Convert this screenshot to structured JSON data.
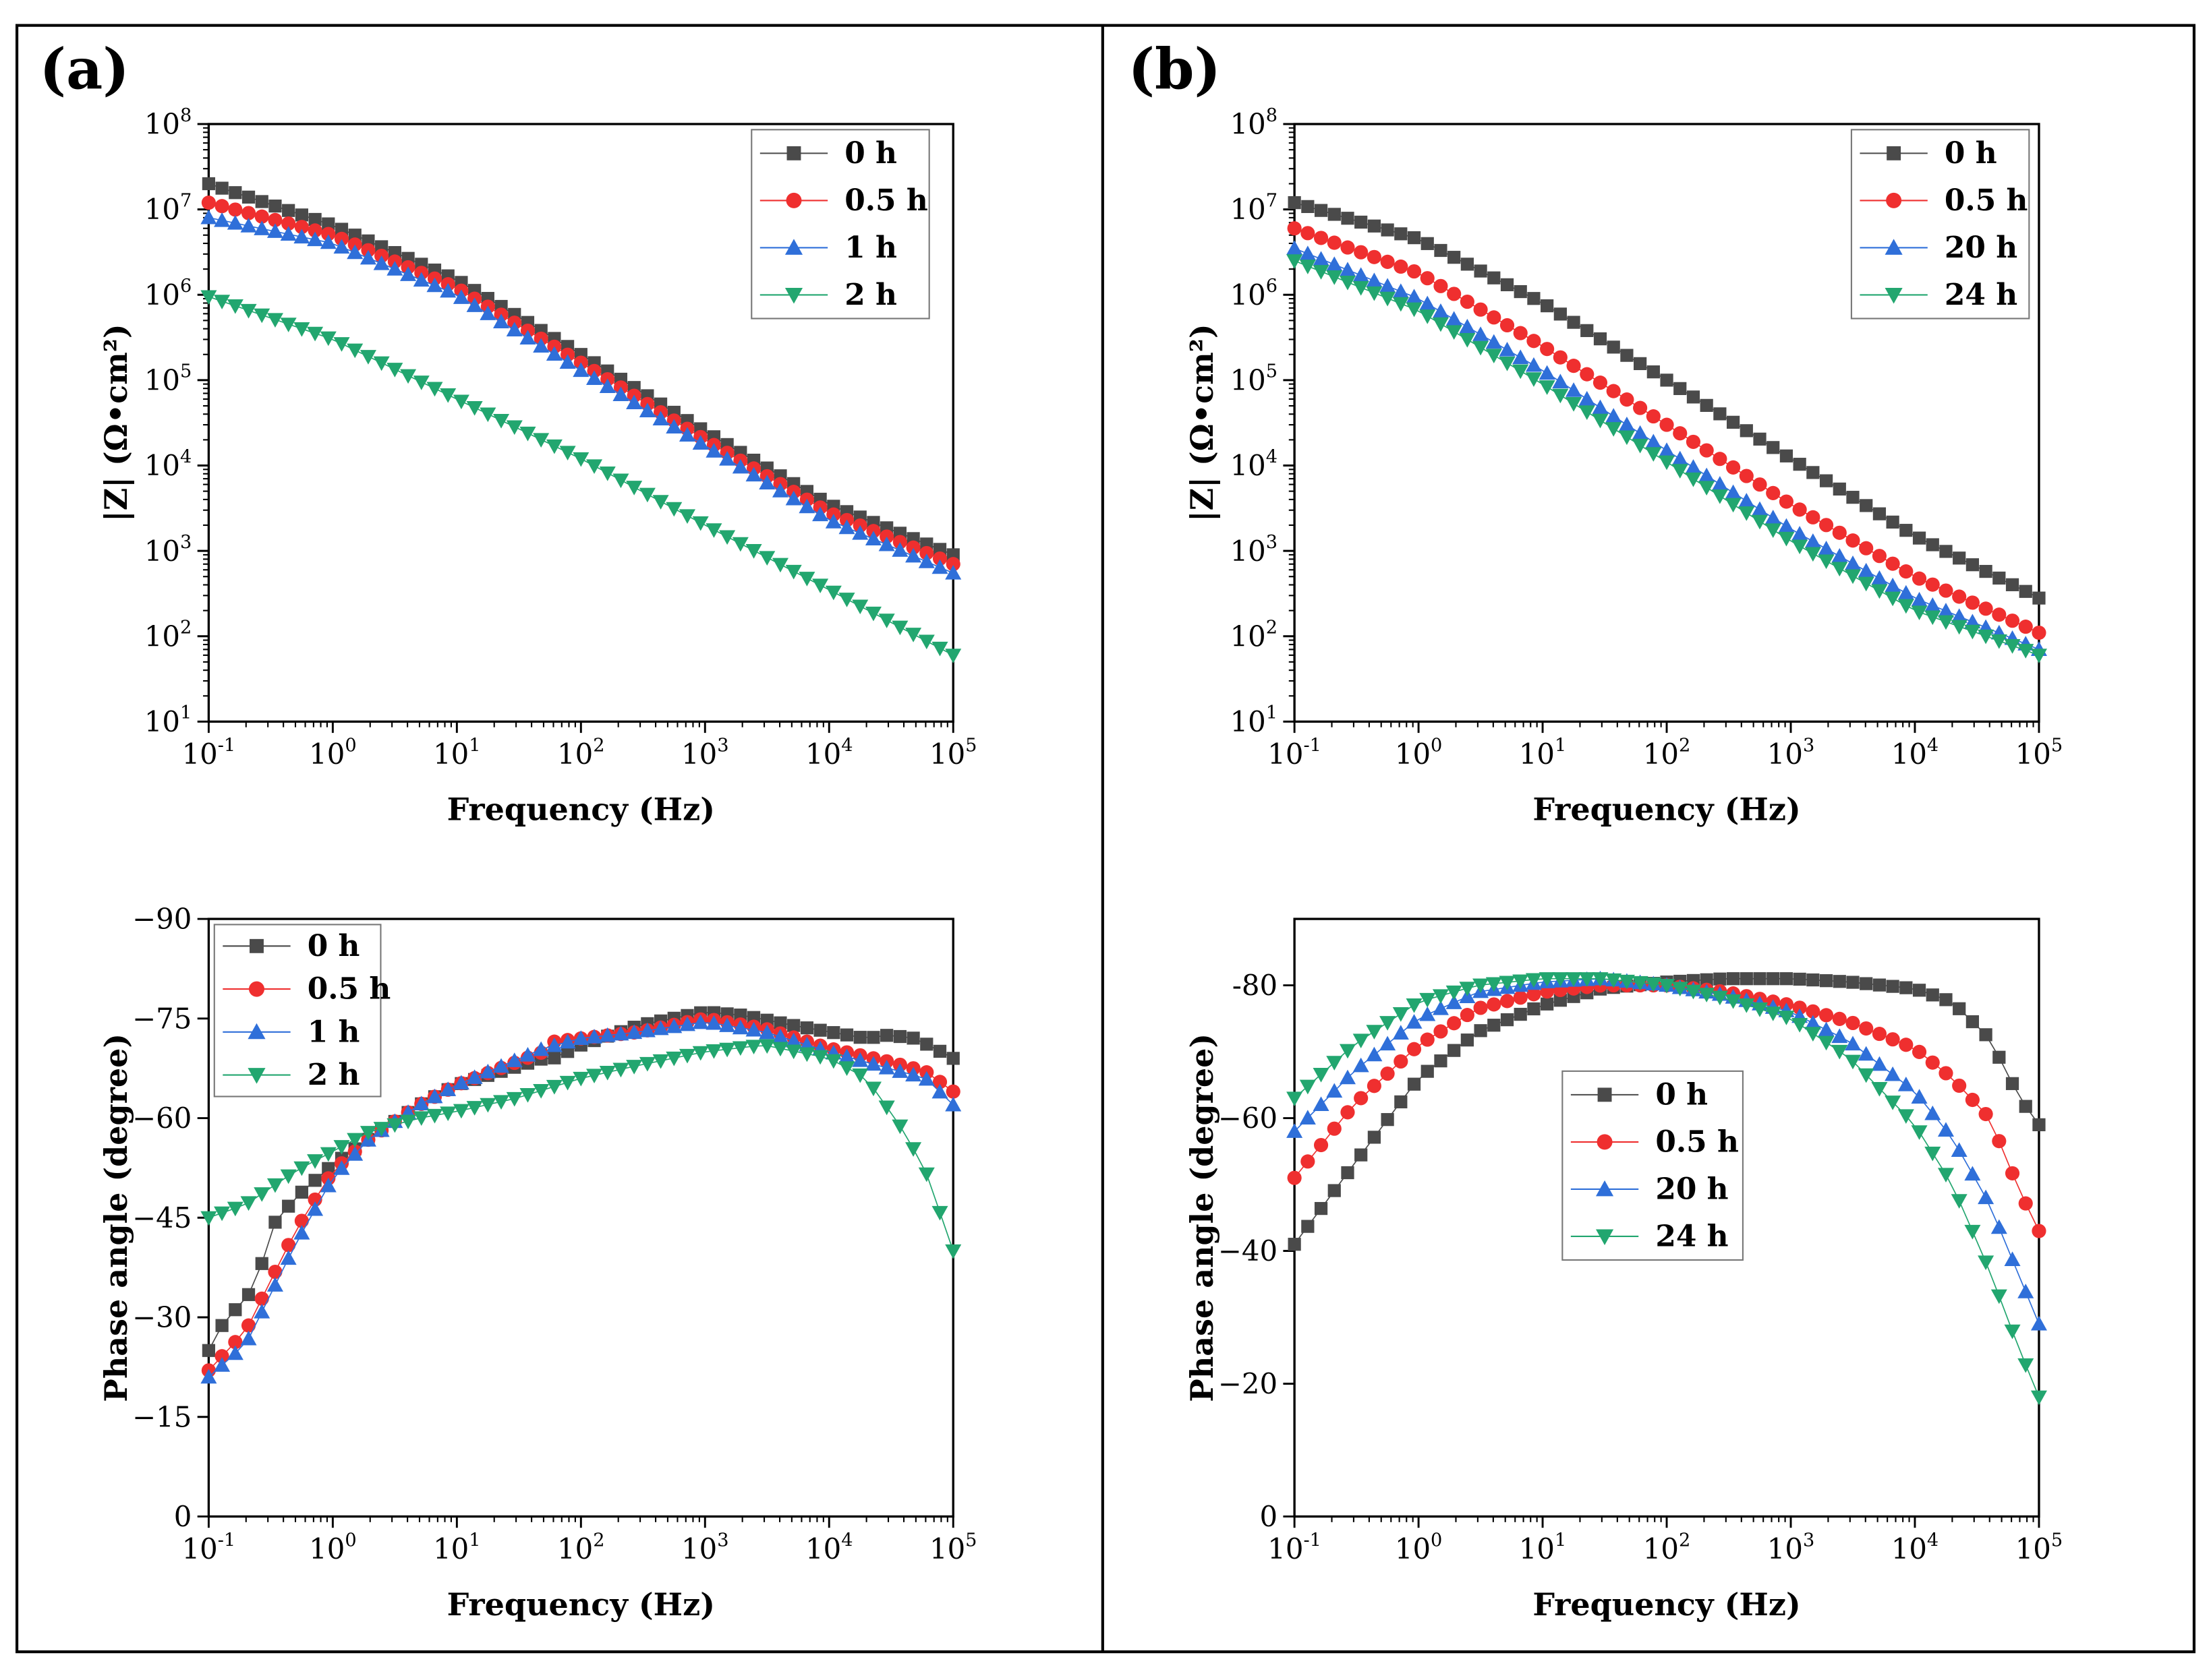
{
  "panels": [
    {
      "id": "a",
      "label": "(a)"
    },
    {
      "id": "b",
      "label": "(b)"
    }
  ],
  "colors": {
    "0h": "#4a4a4a",
    "0.5h": "#ef2f2f",
    "1h": "#2f6fd9",
    "20h": "#2f6fd9",
    "2h": "#22a66f",
    "24h": "#22a66f"
  },
  "chart_data": [
    {
      "id": "a-bode-modulus",
      "panel": "a",
      "type": "scatter",
      "ylabel": "|Z| (Ω•cm²)",
      "xlabel": "Frequency (Hz)",
      "xscale": "log",
      "yscale": "log",
      "xlim": [
        0.1,
        100000
      ],
      "ylim": [
        10,
        100000000
      ],
      "xticks": [
        {
          "b": "10",
          "e": "-1"
        },
        {
          "b": "10",
          "e": "0"
        },
        {
          "b": "10",
          "e": "1"
        },
        {
          "b": "10",
          "e": "2"
        },
        {
          "b": "10",
          "e": "3"
        },
        {
          "b": "10",
          "e": "4"
        },
        {
          "b": "10",
          "e": "5"
        }
      ],
      "yticks": [
        {
          "b": "10",
          "e": "1"
        },
        {
          "b": "10",
          "e": "2"
        },
        {
          "b": "10",
          "e": "3"
        },
        {
          "b": "10",
          "e": "4"
        },
        {
          "b": "10",
          "e": "5"
        },
        {
          "b": "10",
          "e": "6"
        },
        {
          "b": "10",
          "e": "7"
        },
        {
          "b": "10",
          "e": "8"
        }
      ],
      "legend_position": "top-right",
      "series": [
        {
          "name": "0 h",
          "color_key": "0h",
          "marker": "square",
          "x": [
            0.1,
            1,
            10,
            100,
            1000,
            10000,
            100000
          ],
          "y": [
            20000000,
            6500000,
            1500000,
            200000,
            25000,
            3500,
            900
          ]
        },
        {
          "name": "0.5 h",
          "color_key": "0.5h",
          "marker": "circle",
          "x": [
            0.1,
            1,
            10,
            100,
            1000,
            10000,
            100000
          ],
          "y": [
            12000000,
            5000000,
            1200000,
            160000,
            20000,
            2800,
            700
          ]
        },
        {
          "name": "1 h",
          "color_key": "1h",
          "marker": "triangle-up",
          "x": [
            0.1,
            1,
            10,
            100,
            1000,
            10000,
            100000
          ],
          "y": [
            8000000,
            4000000,
            1000000,
            130000,
            17000,
            2300,
            550
          ]
        },
        {
          "name": "2 h",
          "color_key": "2h",
          "marker": "triangle-down",
          "x": [
            0.1,
            1,
            10,
            100,
            1000,
            10000,
            100000
          ],
          "y": [
            950000,
            300000,
            60000,
            12000,
            2000,
            350,
            60
          ]
        }
      ]
    },
    {
      "id": "a-bode-phase",
      "panel": "a",
      "type": "scatter",
      "ylabel": "Phase angle (degree)",
      "xlabel": "Frequency (Hz)",
      "xscale": "log",
      "yscale": "linear",
      "xlim": [
        0.1,
        100000
      ],
      "ylim": [
        0,
        -90
      ],
      "xticks": [
        {
          "b": "10",
          "e": "-1"
        },
        {
          "b": "10",
          "e": "0"
        },
        {
          "b": "10",
          "e": "1"
        },
        {
          "b": "10",
          "e": "2"
        },
        {
          "b": "10",
          "e": "3"
        },
        {
          "b": "10",
          "e": "4"
        },
        {
          "b": "10",
          "e": "5"
        }
      ],
      "yticks": [
        {
          "v": 0,
          "label": "0"
        },
        {
          "v": -15,
          "label": "−15"
        },
        {
          "v": -30,
          "label": "−30"
        },
        {
          "v": -45,
          "label": "−45"
        },
        {
          "v": -60,
          "label": "−60"
        },
        {
          "v": -75,
          "label": "−75"
        },
        {
          "v": -90,
          "label": "−90"
        }
      ],
      "legend_position": "top-left",
      "series": [
        {
          "name": "0 h",
          "color_key": "0h",
          "marker": "square",
          "x": [
            0.1,
            0.13,
            0.2,
            0.25,
            0.3,
            0.5,
            1,
            2,
            5,
            10,
            50,
            60,
            100,
            300,
            1000,
            2000,
            5000,
            10000,
            20000,
            30000,
            50000,
            100000
          ],
          "y": [
            -25,
            -29,
            -33,
            -35,
            -43,
            -48,
            -53,
            -57,
            -62,
            -65,
            -69,
            -69,
            -71,
            -74,
            -76,
            -75.5,
            -74,
            -73,
            -72,
            -72.5,
            -72,
            -69
          ]
        },
        {
          "name": "0.5 h",
          "color_key": "0.5h",
          "marker": "circle",
          "x": [
            0.1,
            0.2,
            0.5,
            1,
            2,
            5,
            10,
            50,
            60,
            100,
            300,
            1000,
            3000,
            10000,
            30000,
            60000,
            100000
          ],
          "y": [
            -22,
            -28,
            -43,
            -52,
            -57,
            -62,
            -65,
            -70,
            -71.5,
            -72,
            -73,
            -75,
            -73.5,
            -70.5,
            -68.5,
            -67,
            -64
          ]
        },
        {
          "name": "1 h",
          "color_key": "1h",
          "marker": "triangle-up",
          "x": [
            0.1,
            0.2,
            0.5,
            1,
            2,
            5,
            10,
            50,
            100,
            300,
            1000,
            3000,
            10000,
            30000,
            60000,
            100000
          ],
          "y": [
            -21,
            -26,
            -41,
            -51,
            -57,
            -62,
            -65,
            -70.5,
            -72,
            -73,
            -74.5,
            -73,
            -70,
            -67.5,
            -66,
            -62
          ]
        },
        {
          "name": "2 h",
          "color_key": "2h",
          "marker": "triangle-down",
          "x": [
            0.1,
            0.2,
            0.5,
            1,
            2,
            5,
            10,
            30,
            100,
            300,
            1000,
            3000,
            10000,
            20000,
            40000,
            60000,
            100000
          ],
          "y": [
            -45,
            -47,
            -52,
            -55,
            -58,
            -60,
            -61,
            -63,
            -66,
            -68,
            -70,
            -71,
            -69,
            -66,
            -58,
            -52,
            -40
          ]
        }
      ]
    },
    {
      "id": "b-bode-modulus",
      "panel": "b",
      "type": "scatter",
      "ylabel": "|Z| (Ω•cm²)",
      "xlabel": "Frequency (Hz)",
      "xscale": "log",
      "yscale": "log",
      "xlim": [
        0.1,
        100000
      ],
      "ylim": [
        10,
        100000000
      ],
      "xticks": [
        {
          "b": "10",
          "e": "-1"
        },
        {
          "b": "10",
          "e": "0"
        },
        {
          "b": "10",
          "e": "1"
        },
        {
          "b": "10",
          "e": "2"
        },
        {
          "b": "10",
          "e": "3"
        },
        {
          "b": "10",
          "e": "4"
        },
        {
          "b": "10",
          "e": "5"
        }
      ],
      "yticks": [
        {
          "b": "10",
          "e": "1"
        },
        {
          "b": "10",
          "e": "2"
        },
        {
          "b": "10",
          "e": "3"
        },
        {
          "b": "10",
          "e": "4"
        },
        {
          "b": "10",
          "e": "5"
        },
        {
          "b": "10",
          "e": "6"
        },
        {
          "b": "10",
          "e": "7"
        },
        {
          "b": "10",
          "e": "8"
        }
      ],
      "legend_position": "top-right",
      "series": [
        {
          "name": "0 h",
          "color_key": "0h",
          "marker": "square",
          "x": [
            0.1,
            1,
            10,
            100,
            1000,
            10000,
            100000
          ],
          "y": [
            12000000,
            4500000,
            800000,
            100000,
            12000,
            1500,
            280
          ]
        },
        {
          "name": "0.5 h",
          "color_key": "0.5h",
          "marker": "circle",
          "x": [
            0.1,
            1,
            10,
            100,
            1000,
            10000,
            100000
          ],
          "y": [
            6000000,
            1800000,
            250000,
            30000,
            3500,
            500,
            110
          ]
        },
        {
          "name": "20 h",
          "color_key": "20h",
          "marker": "triangle-up",
          "x": [
            0.1,
            1,
            10,
            100,
            1000,
            10000,
            100000
          ],
          "y": [
            3500000,
            900000,
            130000,
            15000,
            1800,
            280,
            70
          ]
        },
        {
          "name": "24 h",
          "color_key": "24h",
          "marker": "triangle-down",
          "x": [
            0.1,
            1,
            10,
            100,
            1000,
            10000,
            100000
          ],
          "y": [
            2500000,
            650000,
            90000,
            11000,
            1300,
            200,
            60
          ]
        }
      ]
    },
    {
      "id": "b-bode-phase",
      "panel": "b",
      "type": "scatter",
      "ylabel": "Phase angle (degree)",
      "xlabel": "Frequency (Hz)",
      "xscale": "log",
      "yscale": "linear",
      "xlim": [
        0.1,
        100000
      ],
      "ylim": [
        0,
        -90
      ],
      "xticks": [
        {
          "b": "10",
          "e": "-1"
        },
        {
          "b": "10",
          "e": "0"
        },
        {
          "b": "10",
          "e": "1"
        },
        {
          "b": "10",
          "e": "2"
        },
        {
          "b": "10",
          "e": "3"
        },
        {
          "b": "10",
          "e": "4"
        },
        {
          "b": "10",
          "e": "5"
        }
      ],
      "yticks": [
        {
          "v": 0,
          "label": "0"
        },
        {
          "v": -20,
          "label": "−20"
        },
        {
          "v": -40,
          "label": "−40"
        },
        {
          "v": -60,
          "label": "−60"
        },
        {
          "v": -80,
          "label": "-80"
        }
      ],
      "legend_position": "center-left",
      "series": [
        {
          "name": "0 h",
          "color_key": "0h",
          "marker": "square",
          "x": [
            0.1,
            0.3,
            1,
            3,
            10,
            30,
            100,
            300,
            1000,
            3000,
            10000,
            20000,
            40000,
            70000,
            100000
          ],
          "y": [
            -41,
            -53,
            -66,
            -73,
            -77,
            -79.5,
            -80.5,
            -81,
            -81,
            -80.5,
            -79.5,
            -77.5,
            -72,
            -63,
            -59
          ]
        },
        {
          "name": "0.5 h",
          "color_key": "0.5h",
          "marker": "circle",
          "x": [
            0.1,
            0.3,
            1,
            3,
            10,
            30,
            100,
            300,
            1000,
            3000,
            10000,
            20000,
            40000,
            70000,
            100000
          ],
          "y": [
            -51,
            -62,
            -71,
            -76.5,
            -79,
            -80,
            -80,
            -79,
            -77,
            -74.5,
            -70.5,
            -66,
            -60,
            -49,
            -43
          ]
        },
        {
          "name": "20 h",
          "color_key": "20h",
          "marker": "triangle-up",
          "x": [
            0.1,
            0.3,
            1,
            3,
            10,
            30,
            100,
            300,
            1000,
            3000,
            10000,
            20000,
            40000,
            70000,
            100000
          ],
          "y": [
            -58,
            -67,
            -75,
            -79,
            -80.5,
            -81,
            -80,
            -78.5,
            -76,
            -71.5,
            -64,
            -57,
            -47,
            -36,
            -29
          ]
        },
        {
          "name": "24 h",
          "color_key": "24h",
          "marker": "triangle-down",
          "x": [
            0.1,
            0.3,
            1,
            3,
            10,
            30,
            100,
            300,
            1000,
            3000,
            10000,
            20000,
            40000,
            70000,
            100000
          ],
          "y": [
            -63,
            -71,
            -77.5,
            -80,
            -81,
            -81,
            -80,
            -78,
            -75,
            -69,
            -59,
            -50,
            -37,
            -25,
            -18
          ]
        }
      ]
    }
  ]
}
